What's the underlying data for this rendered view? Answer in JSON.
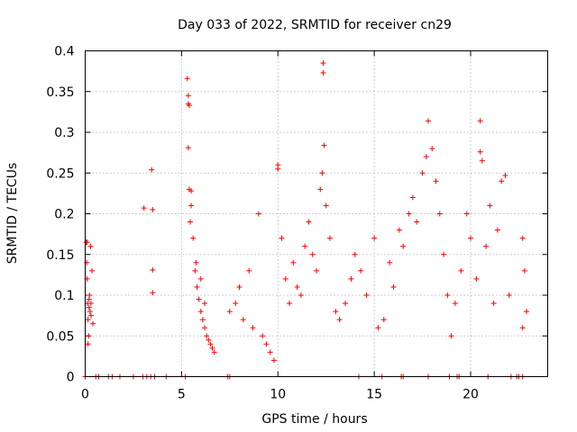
{
  "chart_data": {
    "type": "scatter",
    "title": "Day 033 of 2022, SRMTID for receiver cn29",
    "xlabel": "GPS time / hours",
    "ylabel": "SRMTID / TECUs",
    "xlim": [
      0,
      24
    ],
    "ylim": [
      0,
      0.4
    ],
    "grid": true,
    "marker": "+",
    "series_color": "#ff0000",
    "xticks": [
      {
        "value": 0,
        "label": "0"
      },
      {
        "value": 5,
        "label": "5"
      },
      {
        "value": 10,
        "label": "10"
      },
      {
        "value": 15,
        "label": "15"
      },
      {
        "value": 20,
        "label": "20"
      }
    ],
    "yticks": [
      {
        "value": 0,
        "label": "0"
      },
      {
        "value": 0.05,
        "label": "0.05"
      },
      {
        "value": 0.1,
        "label": "0.1"
      },
      {
        "value": 0.15,
        "label": "0.15"
      },
      {
        "value": 0.2,
        "label": "0.2"
      },
      {
        "value": 0.25,
        "label": "0.25"
      },
      {
        "value": 0.3,
        "label": "0.3"
      },
      {
        "value": 0.35,
        "label": "0.35"
      },
      {
        "value": 0.4,
        "label": "0.4"
      }
    ],
    "points": [
      [
        0.05,
        0.165
      ],
      [
        0.08,
        0.14
      ],
      [
        0.1,
        0.12
      ],
      [
        0.12,
        0.09
      ],
      [
        0.15,
        0.07
      ],
      [
        0.18,
        0.05
      ],
      [
        0.2,
        0.085
      ],
      [
        0.22,
        0.1
      ],
      [
        0.25,
        0.08
      ],
      [
        0.28,
        0.16
      ],
      [
        0.3,
        0.075
      ],
      [
        0.35,
        0.13
      ],
      [
        0.4,
        0.065
      ],
      [
        0.15,
        0.04
      ],
      [
        0.1,
        0.165
      ],
      [
        0.2,
        0.095
      ],
      [
        0.3,
        0.09
      ],
      [
        3.05,
        0.207
      ],
      [
        3.45,
        0.254
      ],
      [
        3.5,
        0.205
      ],
      [
        3.5,
        0.131
      ],
      [
        3.5,
        0.103
      ],
      [
        5.3,
        0.366
      ],
      [
        5.35,
        0.345
      ],
      [
        5.35,
        0.335
      ],
      [
        5.4,
        0.333
      ],
      [
        5.35,
        0.281
      ],
      [
        5.4,
        0.23
      ],
      [
        5.5,
        0.228
      ],
      [
        5.5,
        0.21
      ],
      [
        5.45,
        0.19
      ],
      [
        5.6,
        0.17
      ],
      [
        5.7,
        0.13
      ],
      [
        5.8,
        0.11
      ],
      [
        5.9,
        0.095
      ],
      [
        6.0,
        0.08
      ],
      [
        6.1,
        0.07
      ],
      [
        6.2,
        0.06
      ],
      [
        6.3,
        0.05
      ],
      [
        6.4,
        0.045
      ],
      [
        6.5,
        0.04
      ],
      [
        6.6,
        0.035
      ],
      [
        6.7,
        0.03
      ],
      [
        6.2,
        0.09
      ],
      [
        6.0,
        0.12
      ],
      [
        5.75,
        0.14
      ],
      [
        7.5,
        0.08
      ],
      [
        7.8,
        0.09
      ],
      [
        8.0,
        0.11
      ],
      [
        8.2,
        0.07
      ],
      [
        8.5,
        0.13
      ],
      [
        8.7,
        0.06
      ],
      [
        9.0,
        0.2
      ],
      [
        9.2,
        0.05
      ],
      [
        9.4,
        0.04
      ],
      [
        9.6,
        0.03
      ],
      [
        9.8,
        0.02
      ],
      [
        10.0,
        0.26
      ],
      [
        10.0,
        0.255
      ],
      [
        10.2,
        0.17
      ],
      [
        10.4,
        0.12
      ],
      [
        10.6,
        0.09
      ],
      [
        10.8,
        0.14
      ],
      [
        11.0,
        0.11
      ],
      [
        11.2,
        0.1
      ],
      [
        11.4,
        0.16
      ],
      [
        11.6,
        0.19
      ],
      [
        11.8,
        0.15
      ],
      [
        12.0,
        0.13
      ],
      [
        12.2,
        0.23
      ],
      [
        12.3,
        0.25
      ],
      [
        12.35,
        0.385
      ],
      [
        12.35,
        0.373
      ],
      [
        12.4,
        0.284
      ],
      [
        12.5,
        0.21
      ],
      [
        12.7,
        0.17
      ],
      [
        13.0,
        0.08
      ],
      [
        13.2,
        0.07
      ],
      [
        13.5,
        0.09
      ],
      [
        13.8,
        0.12
      ],
      [
        14.0,
        0.15
      ],
      [
        14.3,
        0.13
      ],
      [
        14.6,
        0.1
      ],
      [
        15.0,
        0.17
      ],
      [
        15.2,
        0.06
      ],
      [
        15.5,
        0.07
      ],
      [
        15.8,
        0.14
      ],
      [
        16.0,
        0.11
      ],
      [
        16.3,
        0.18
      ],
      [
        16.5,
        0.16
      ],
      [
        16.8,
        0.2
      ],
      [
        17.0,
        0.22
      ],
      [
        17.2,
        0.19
      ],
      [
        17.5,
        0.25
      ],
      [
        17.7,
        0.27
      ],
      [
        17.8,
        0.314
      ],
      [
        18.0,
        0.28
      ],
      [
        18.2,
        0.24
      ],
      [
        18.4,
        0.2
      ],
      [
        18.6,
        0.15
      ],
      [
        18.8,
        0.1
      ],
      [
        19.0,
        0.05
      ],
      [
        19.2,
        0.09
      ],
      [
        19.5,
        0.13
      ],
      [
        19.8,
        0.2
      ],
      [
        20.0,
        0.17
      ],
      [
        20.3,
        0.12
      ],
      [
        20.5,
        0.314
      ],
      [
        20.5,
        0.276
      ],
      [
        20.6,
        0.265
      ],
      [
        20.8,
        0.16
      ],
      [
        21.0,
        0.21
      ],
      [
        21.2,
        0.09
      ],
      [
        21.4,
        0.18
      ],
      [
        21.6,
        0.24
      ],
      [
        21.8,
        0.247
      ],
      [
        22.0,
        0.1
      ],
      [
        22.7,
        0.17
      ],
      [
        22.8,
        0.13
      ],
      [
        22.9,
        0.08
      ],
      [
        22.7,
        0.06
      ]
    ],
    "zero_points_x": [
      0.0,
      0.55,
      0.7,
      1.2,
      1.4,
      1.8,
      2.5,
      3.0,
      3.2,
      3.4,
      3.6,
      4.2,
      5.2,
      7.4,
      7.5,
      14.2,
      15.4,
      16.4,
      16.5,
      17.8,
      18.9,
      19.3,
      19.4,
      20.9,
      22.1,
      22.4,
      22.5,
      22.7
    ]
  }
}
